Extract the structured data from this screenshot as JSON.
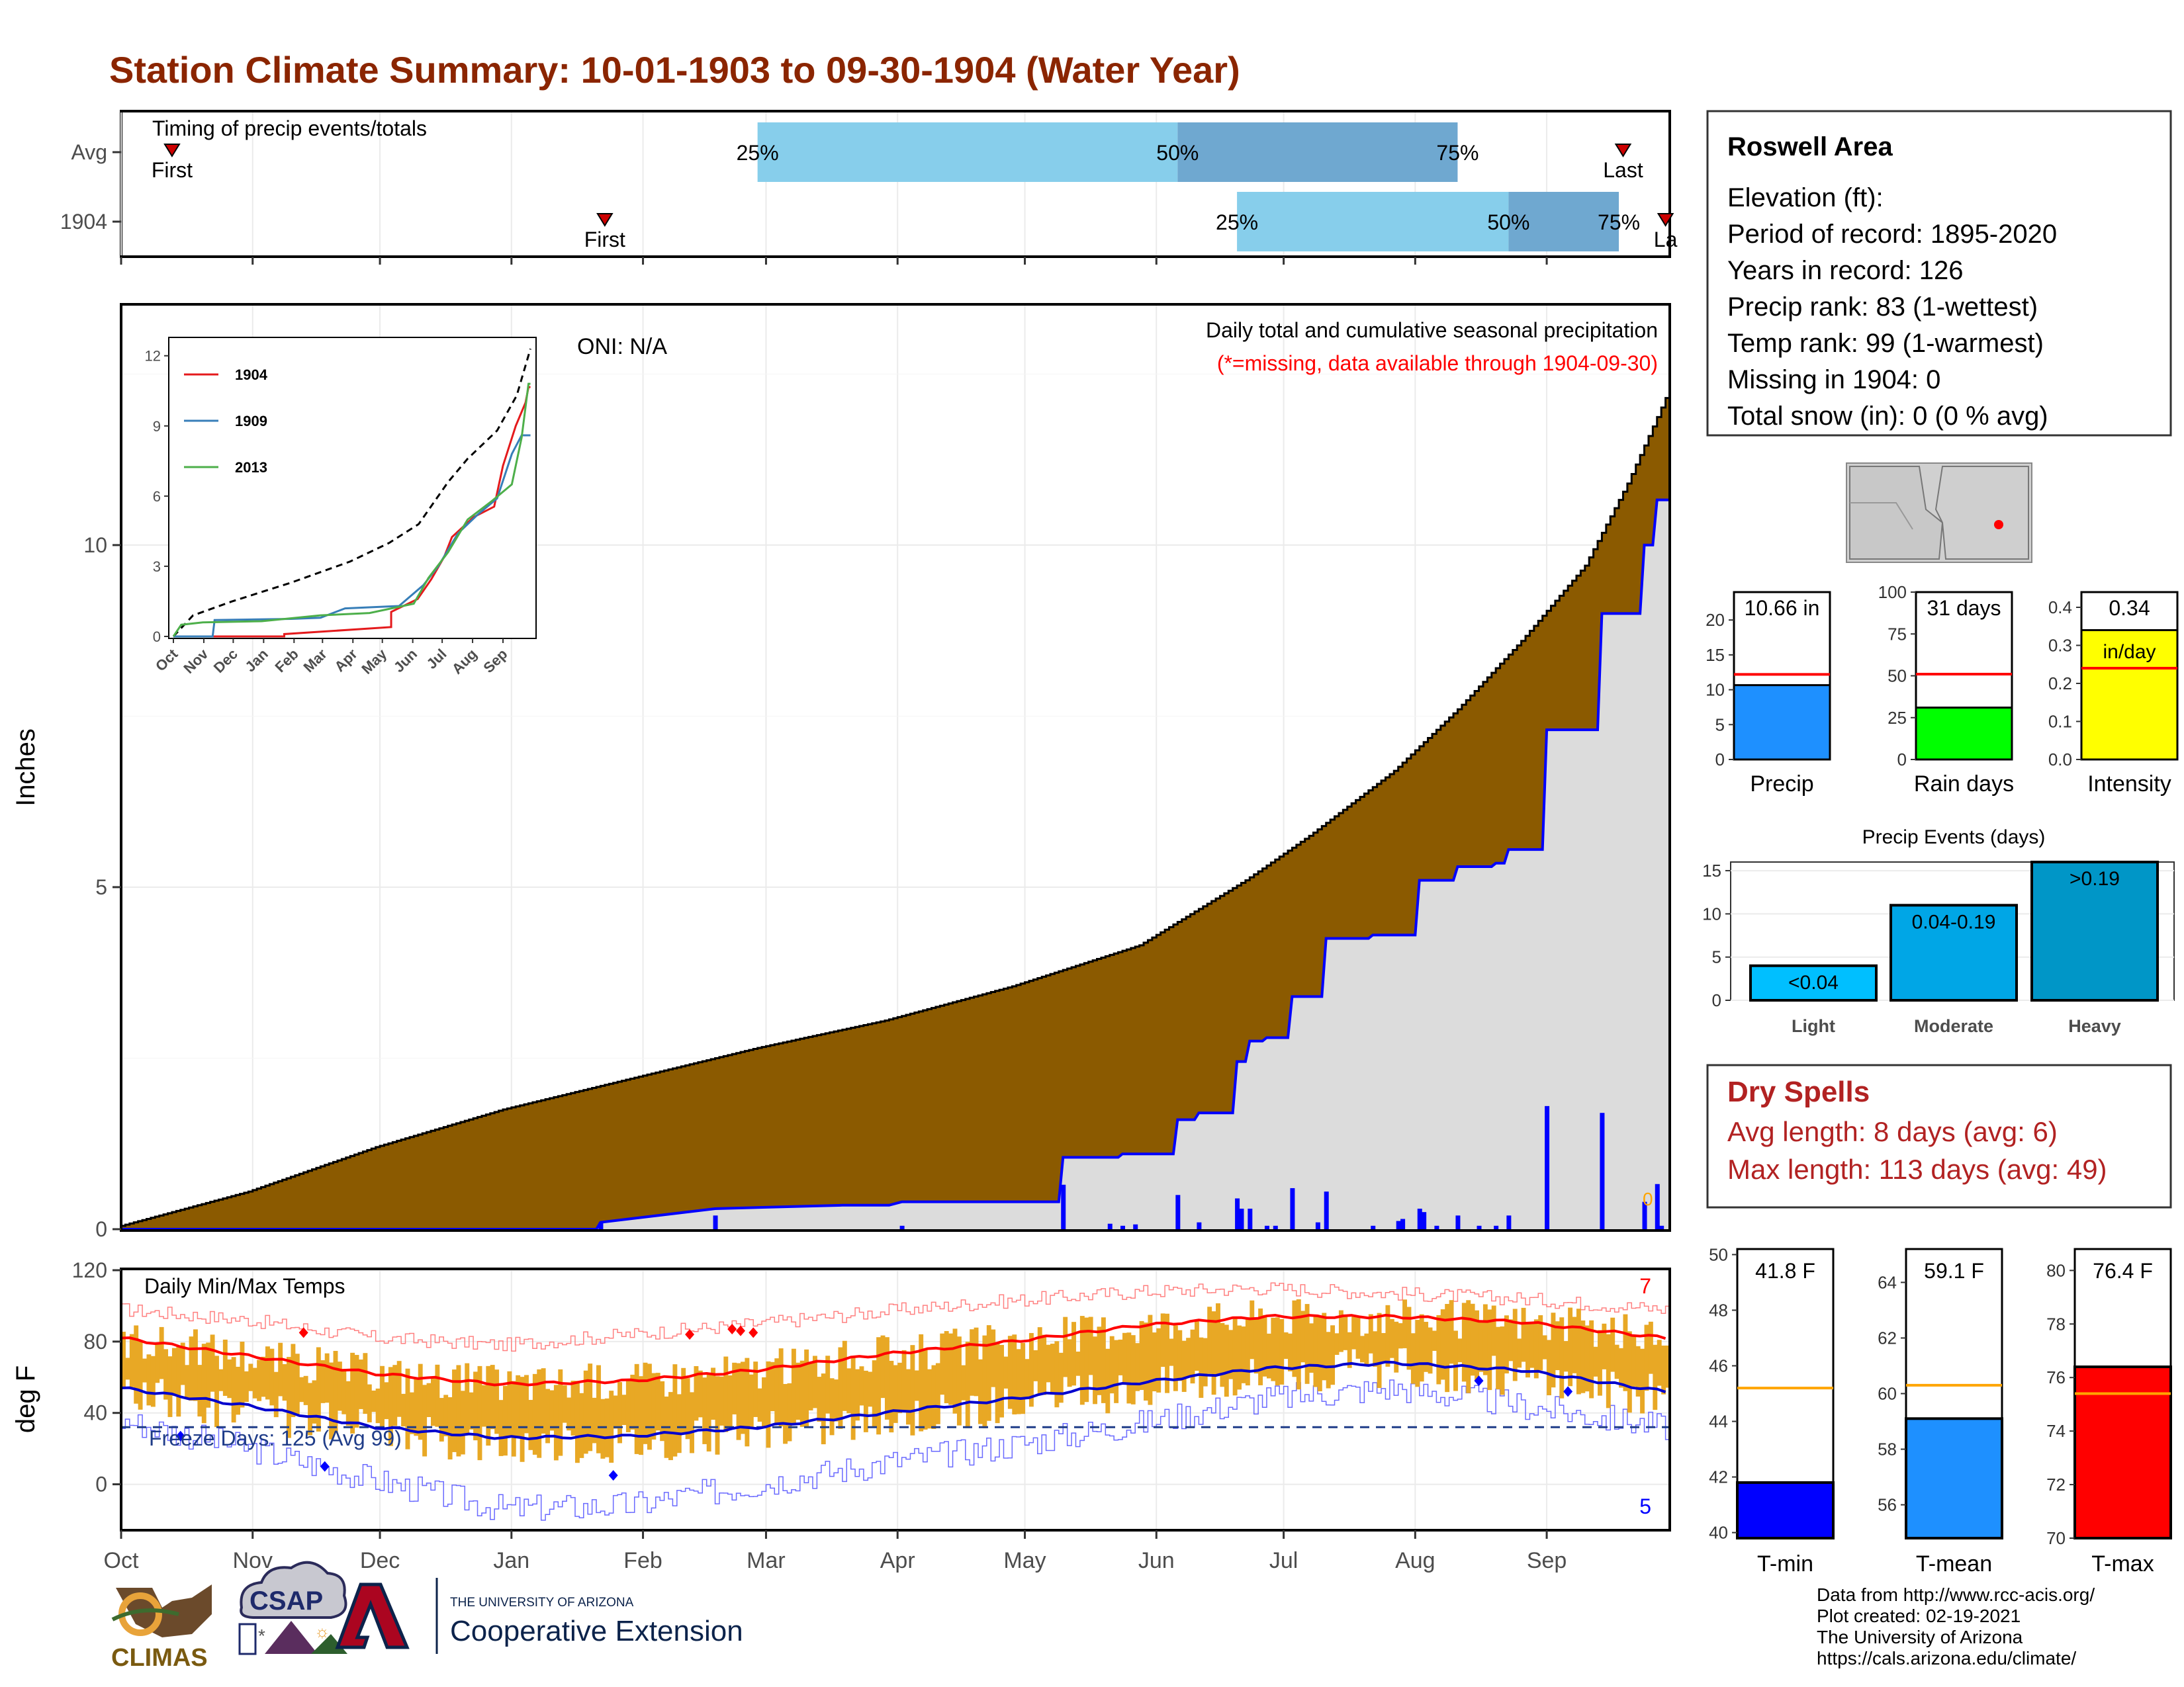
{
  "title": "Station Climate Summary: 10-01-1903 to 09-30-1904 (Water Year)",
  "timing": {
    "label": "Timing of precip events/totals",
    "rows": [
      {
        "name": "Avg",
        "first": "First",
        "last": "Last",
        "first_day": 12,
        "last_day": 354,
        "p25_day": 150,
        "p50_day": 249,
        "p75_day": 315
      },
      {
        "name": "1904",
        "first": "First",
        "last": "La",
        "first_day": 114,
        "last_day": 364,
        "p25_day": 263,
        "p50_day": 327,
        "p75_day": 353
      }
    ],
    "pct_labels": [
      "25%",
      "50%",
      "75%"
    ]
  },
  "precip": {
    "ylabel": "Inches",
    "title": "Daily total and cumulative seasonal precipitation",
    "subtitle": "(*=missing, data available through 1904-09-30)",
    "oni": "ONI: N/A",
    "zero_note": "0",
    "yticks": [
      "0",
      "5",
      "10"
    ],
    "ylim": [
      0,
      13.5
    ],
    "avg_cumulative": [
      [
        0,
        0.05
      ],
      [
        30,
        0.55
      ],
      [
        60,
        1.2
      ],
      [
        90,
        1.75
      ],
      [
        120,
        2.2
      ],
      [
        150,
        2.65
      ],
      [
        180,
        3.05
      ],
      [
        210,
        3.55
      ],
      [
        240,
        4.15
      ],
      [
        265,
        5.1
      ],
      [
        280,
        5.75
      ],
      [
        300,
        6.7
      ],
      [
        315,
        7.6
      ],
      [
        330,
        8.6
      ],
      [
        345,
        9.7
      ],
      [
        355,
        10.9
      ],
      [
        364,
        12.15
      ]
    ],
    "cumulative_1904": [
      [
        0,
        0
      ],
      [
        112,
        0
      ],
      [
        113,
        0.1
      ],
      [
        140,
        0.3
      ],
      [
        170,
        0.35
      ],
      [
        181,
        0.35
      ],
      [
        184,
        0.4
      ],
      [
        200,
        0.4
      ],
      [
        221,
        0.4
      ],
      [
        222,
        1.05
      ],
      [
        235,
        1.05
      ],
      [
        236,
        1.1
      ],
      [
        248,
        1.1
      ],
      [
        249,
        1.6
      ],
      [
        253,
        1.6
      ],
      [
        254,
        1.7
      ],
      [
        262,
        1.7
      ],
      [
        263,
        2.45
      ],
      [
        265,
        2.45
      ],
      [
        266,
        2.75
      ],
      [
        269,
        2.75
      ],
      [
        270,
        2.8
      ],
      [
        275,
        2.8
      ],
      [
        276,
        3.4
      ],
      [
        283,
        3.4
      ],
      [
        284,
        4.25
      ],
      [
        294,
        4.25
      ],
      [
        295,
        4.3
      ],
      [
        305,
        4.3
      ],
      [
        306,
        5.1
      ],
      [
        314,
        5.1
      ],
      [
        315,
        5.3
      ],
      [
        323,
        5.3
      ],
      [
        324,
        5.35
      ],
      [
        326,
        5.35
      ],
      [
        327,
        5.55
      ],
      [
        335,
        5.55
      ],
      [
        336,
        7.3
      ],
      [
        348,
        7.3
      ],
      [
        349,
        9.0
      ],
      [
        358,
        9.0
      ],
      [
        359,
        10.0
      ],
      [
        361,
        10.0
      ],
      [
        362,
        10.66
      ],
      [
        364,
        10.66
      ]
    ],
    "daily_bars": [
      [
        113,
        0.1
      ],
      [
        140,
        0.2
      ],
      [
        184,
        0.05
      ],
      [
        222,
        0.65
      ],
      [
        233,
        0.08
      ],
      [
        236,
        0.05
      ],
      [
        239,
        0.07
      ],
      [
        249,
        0.5
      ],
      [
        254,
        0.1
      ],
      [
        263,
        0.45
      ],
      [
        264,
        0.3
      ],
      [
        266,
        0.3
      ],
      [
        270,
        0.05
      ],
      [
        272,
        0.05
      ],
      [
        276,
        0.6
      ],
      [
        282,
        0.1
      ],
      [
        284,
        0.55
      ],
      [
        295,
        0.05
      ],
      [
        301,
        0.12
      ],
      [
        302,
        0.15
      ],
      [
        306,
        0.3
      ],
      [
        307,
        0.25
      ],
      [
        310,
        0.05
      ],
      [
        315,
        0.2
      ],
      [
        320,
        0.05
      ],
      [
        324,
        0.05
      ],
      [
        327,
        0.2
      ],
      [
        336,
        1.8
      ],
      [
        349,
        1.7
      ],
      [
        359,
        0.4
      ],
      [
        362,
        0.66
      ],
      [
        363,
        0.05
      ]
    ]
  },
  "inset": {
    "yticks": [
      "0",
      "3",
      "6",
      "9",
      "12"
    ],
    "months": [
      "Oct",
      "Nov",
      "Dec",
      "Jan",
      "Feb",
      "Mar",
      "Apr",
      "May",
      "Jun",
      "Jul",
      "Aug",
      "Sep"
    ],
    "legend": [
      {
        "name": "1904",
        "color": "#e41a1c"
      },
      {
        "name": "1909",
        "color": "#377eb8"
      },
      {
        "name": "2013",
        "color": "#4daf4a"
      }
    ],
    "avg": [
      [
        0,
        0
      ],
      [
        20,
        0.9
      ],
      [
        60,
        1.5
      ],
      [
        120,
        2.3
      ],
      [
        180,
        3.2
      ],
      [
        220,
        4.0
      ],
      [
        250,
        4.8
      ],
      [
        280,
        6.6
      ],
      [
        300,
        7.6
      ],
      [
        330,
        8.8
      ],
      [
        350,
        10.3
      ],
      [
        364,
        12.3
      ]
    ],
    "series": {
      "1904": [
        [
          0,
          0
        ],
        [
          113,
          0
        ],
        [
          113,
          0.1
        ],
        [
          222,
          0.4
        ],
        [
          222,
          1.05
        ],
        [
          249,
          1.6
        ],
        [
          263,
          2.45
        ],
        [
          276,
          3.4
        ],
        [
          284,
          4.25
        ],
        [
          306,
          5.1
        ],
        [
          327,
          5.55
        ],
        [
          336,
          7.3
        ],
        [
          349,
          9.0
        ],
        [
          359,
          10.0
        ],
        [
          362,
          10.66
        ],
        [
          364,
          10.66
        ]
      ],
      "1909": [
        [
          0,
          0
        ],
        [
          40,
          0
        ],
        [
          42,
          0.7
        ],
        [
          120,
          0.75
        ],
        [
          150,
          0.8
        ],
        [
          175,
          1.2
        ],
        [
          230,
          1.3
        ],
        [
          255,
          2.2
        ],
        [
          270,
          3.0
        ],
        [
          290,
          4.4
        ],
        [
          310,
          5.2
        ],
        [
          330,
          5.9
        ],
        [
          345,
          7.8
        ],
        [
          355,
          8.6
        ],
        [
          364,
          8.6
        ]
      ],
      "2013": [
        [
          0,
          0
        ],
        [
          8,
          0.5
        ],
        [
          30,
          0.6
        ],
        [
          90,
          0.65
        ],
        [
          150,
          0.9
        ],
        [
          200,
          1.0
        ],
        [
          245,
          1.4
        ],
        [
          260,
          2.5
        ],
        [
          280,
          3.6
        ],
        [
          300,
          5.0
        ],
        [
          325,
          5.8
        ],
        [
          345,
          6.5
        ],
        [
          355,
          8.5
        ],
        [
          362,
          10.8
        ],
        [
          364,
          10.8
        ]
      ]
    }
  },
  "temps": {
    "ylabel": "deg F",
    "label": "Daily Min/Max Temps",
    "freeze": "Freeze Days: 125 (Avg 99)",
    "freeze_line": 32,
    "count_hot": "7",
    "count_cold": "5",
    "yticks": [
      "0",
      "40",
      "80",
      "120"
    ],
    "ylim": [
      -25,
      120
    ],
    "months": [
      "Oct",
      "Nov",
      "Dec",
      "Jan",
      "Feb",
      "Mar",
      "Apr",
      "May",
      "Jun",
      "Jul",
      "Aug",
      "Sep"
    ],
    "avg_max": [
      [
        0,
        82
      ],
      [
        30,
        72
      ],
      [
        60,
        62
      ],
      [
        90,
        56
      ],
      [
        120,
        58
      ],
      [
        150,
        64
      ],
      [
        180,
        73
      ],
      [
        210,
        80
      ],
      [
        240,
        89
      ],
      [
        270,
        94
      ],
      [
        300,
        94
      ],
      [
        330,
        91
      ],
      [
        364,
        82
      ]
    ],
    "avg_min": [
      [
        0,
        54
      ],
      [
        30,
        44
      ],
      [
        60,
        32
      ],
      [
        90,
        26
      ],
      [
        120,
        27
      ],
      [
        150,
        32
      ],
      [
        180,
        40
      ],
      [
        210,
        48
      ],
      [
        240,
        57
      ],
      [
        270,
        65
      ],
      [
        300,
        68
      ],
      [
        330,
        64
      ],
      [
        364,
        52
      ]
    ],
    "record_max": [
      [
        0,
        98
      ],
      [
        30,
        92
      ],
      [
        60,
        82
      ],
      [
        90,
        78
      ],
      [
        120,
        84
      ],
      [
        150,
        90
      ],
      [
        180,
        97
      ],
      [
        210,
        103
      ],
      [
        240,
        108
      ],
      [
        270,
        110
      ],
      [
        300,
        107
      ],
      [
        330,
        104
      ],
      [
        364,
        98
      ]
    ],
    "record_min": [
      [
        0,
        36
      ],
      [
        30,
        20
      ],
      [
        60,
        2
      ],
      [
        90,
        -14
      ],
      [
        120,
        -12
      ],
      [
        150,
        0
      ],
      [
        180,
        12
      ],
      [
        210,
        22
      ],
      [
        240,
        34
      ],
      [
        270,
        48
      ],
      [
        300,
        54
      ],
      [
        330,
        44
      ],
      [
        364,
        32
      ]
    ],
    "hot_days": [
      [
        43,
        85
      ],
      [
        134,
        84
      ],
      [
        144,
        87
      ],
      [
        146,
        86
      ],
      [
        149,
        85
      ]
    ],
    "cold_days": [
      [
        14,
        27
      ],
      [
        48,
        10
      ],
      [
        116,
        5
      ],
      [
        320,
        58
      ],
      [
        341,
        52
      ]
    ]
  },
  "info": {
    "station": "Roswell Area",
    "lines": [
      "Elevation (ft):",
      "Period of record: 1895-2020",
      "Years in record: 126",
      "Precip rank: 83 (1-wettest)",
      "Temp rank: 99 (1-warmest)",
      "Missing in 1904: 0",
      "Total snow (in): 0 (0 % avg)"
    ]
  },
  "minibars": [
    {
      "name": "Precip",
      "value": 10.66,
      "value_label": "10.66 in",
      "avg": 12.2,
      "ymax": 24,
      "ticks": [
        "0",
        "5",
        "10",
        "15",
        "20"
      ],
      "tickvals": [
        0,
        5,
        10,
        15,
        20
      ],
      "color": "#1e90ff"
    },
    {
      "name": "Rain days",
      "value": 31,
      "value_label": "31 days",
      "avg": 51,
      "ymax": 100,
      "ticks": [
        "0",
        "25",
        "50",
        "75",
        "100"
      ],
      "tickvals": [
        0,
        25,
        50,
        75,
        100
      ],
      "color": "#00ff00"
    },
    {
      "name": "Intensity",
      "value": 0.34,
      "value_label": "0.34",
      "value_unit": "in/day",
      "avg": 0.24,
      "ymax": 0.44,
      "ticks": [
        "0.0",
        "0.1",
        "0.2",
        "0.3",
        "0.4"
      ],
      "tickvals": [
        0,
        0.1,
        0.2,
        0.3,
        0.4
      ],
      "color": "#ffff00"
    }
  ],
  "events": {
    "title": "Precip Events (days)",
    "ymax": 16,
    "ticks": [
      "0",
      "5",
      "10",
      "15"
    ],
    "tickvals": [
      0,
      5,
      10,
      15
    ],
    "bars": [
      {
        "name": "Light",
        "label": "<0.04",
        "value": 4,
        "color": "#00bfff"
      },
      {
        "name": "Moderate",
        "label": "0.04-0.19",
        "value": 11,
        "color": "#00a6e6"
      },
      {
        "name": "Heavy",
        "label": ">0.19",
        "value": 16,
        "color": "#0096c7"
      }
    ]
  },
  "dry": {
    "title": "Dry Spells",
    "avg_length": "Avg length: 8 days (avg: 6)",
    "max_length": "Max length: 113 days (avg: 49)"
  },
  "tempbars": [
    {
      "name": "T-min",
      "value": 41.8,
      "value_label": "41.8 F",
      "avg": 45.2,
      "ymin": 39.8,
      "ymax": 50.2,
      "ticks": [
        "40",
        "42",
        "44",
        "46",
        "48",
        "50"
      ],
      "tickvals": [
        40,
        42,
        44,
        46,
        48,
        50
      ],
      "color": "#0000ff"
    },
    {
      "name": "T-mean",
      "value": 59.1,
      "value_label": "59.1 F",
      "avg": 60.3,
      "ymin": 54.8,
      "ymax": 65.2,
      "ticks": [
        "56",
        "58",
        "60",
        "62",
        "64"
      ],
      "tickvals": [
        56,
        58,
        60,
        62,
        64
      ],
      "color": "#1e90ff"
    },
    {
      "name": "T-max",
      "value": 76.4,
      "value_label": "76.4 F",
      "avg": 75.4,
      "ymin": 70,
      "ymax": 80.8,
      "ticks": [
        "70",
        "72",
        "74",
        "76",
        "78",
        "80"
      ],
      "tickvals": [
        70,
        72,
        74,
        76,
        78,
        80
      ],
      "color": "#ff0000"
    }
  ],
  "credits": [
    "Data from http://www.rcc-acis.org/",
    "Plot created: 02-19-2021",
    "The University of Arizona",
    "https://cals.arizona.edu/climate/"
  ],
  "logos": {
    "climas": "CLIMAS",
    "csap": "CSAP",
    "ua_small": "THE UNIVERSITY OF ARIZONA",
    "ua_big": "Cooperative Extension"
  }
}
